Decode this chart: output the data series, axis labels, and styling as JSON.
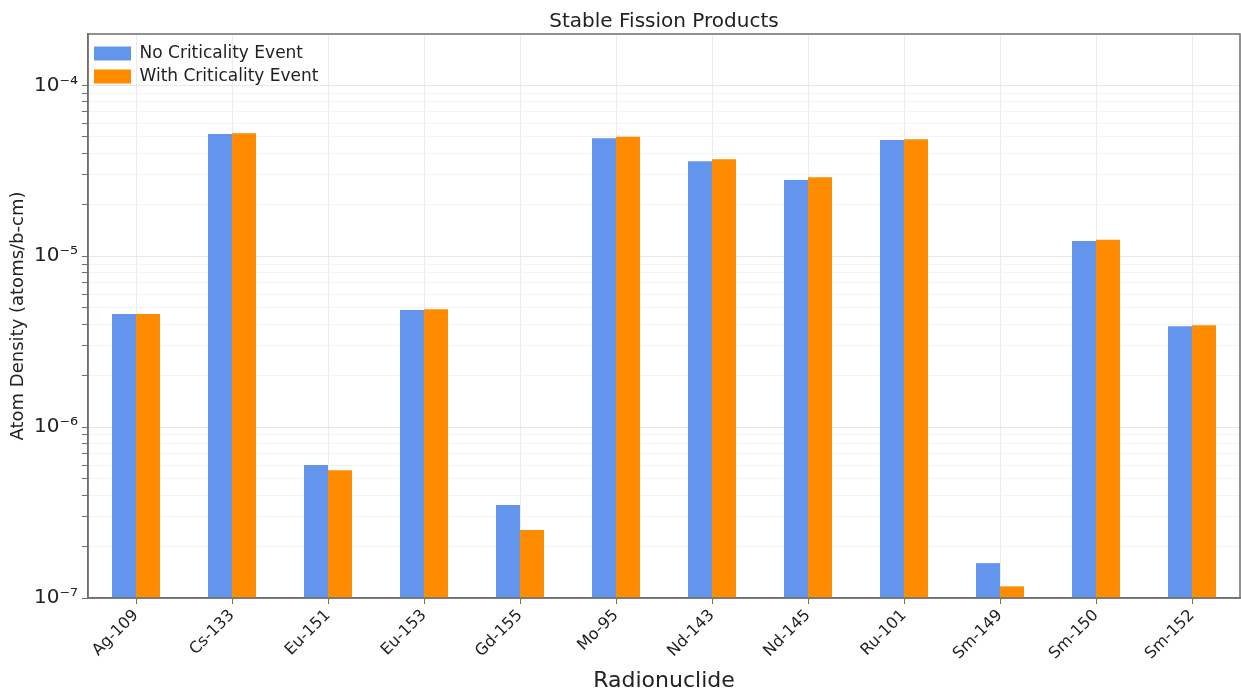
{
  "chart_data": {
    "type": "bar",
    "title": "Stable Fission Products",
    "xlabel": "Radionuclide",
    "ylabel": "Atom Density (atoms/b-cm)",
    "categories": [
      "Ag-109",
      "Cs-133",
      "Eu-151",
      "Eu-153",
      "Gd-155",
      "Mo-95",
      "Nd-143",
      "Nd-145",
      "Ru-101",
      "Sm-149",
      "Sm-150",
      "Sm-152"
    ],
    "series": [
      {
        "name": "No Criticality Event",
        "color": "#6495ed",
        "values": [
          4.6e-06,
          5.2e-05,
          6e-07,
          4.85e-06,
          3.5e-07,
          4.9e-05,
          3.6e-05,
          2.8e-05,
          4.8e-05,
          1.6e-07,
          1.23e-05,
          3.9e-06
        ]
      },
      {
        "name": "With Criticality Event",
        "color": "#ff8c00",
        "values": [
          4.6e-06,
          5.25e-05,
          5.6e-07,
          4.9e-06,
          2.5e-07,
          5e-05,
          3.7e-05,
          2.9e-05,
          4.85e-05,
          1.17e-07,
          1.25e-05,
          3.95e-06
        ]
      }
    ],
    "ylim": [
      1e-07,
      0.0002
    ],
    "yticks": [
      {
        "value": 1e-07,
        "label": "10⁻⁷"
      },
      {
        "value": 2e-07,
        "label": null
      },
      {
        "value": 3e-07,
        "label": null
      },
      {
        "value": 4e-07,
        "label": null
      },
      {
        "value": 5e-07,
        "label": null
      },
      {
        "value": 6e-07,
        "label": null
      },
      {
        "value": 7e-07,
        "label": null
      },
      {
        "value": 8e-07,
        "label": null
      },
      {
        "value": 9e-07,
        "label": null
      },
      {
        "value": 1e-06,
        "label": "10⁻⁶"
      },
      {
        "value": 2e-06,
        "label": null
      },
      {
        "value": 3e-06,
        "label": null
      },
      {
        "value": 4e-06,
        "label": null
      },
      {
        "value": 5e-06,
        "label": null
      },
      {
        "value": 6e-06,
        "label": null
      },
      {
        "value": 7e-06,
        "label": null
      },
      {
        "value": 8e-06,
        "label": null
      },
      {
        "value": 9e-06,
        "label": null
      },
      {
        "value": 1e-05,
        "label": "10⁻⁵"
      },
      {
        "value": 2e-05,
        "label": null
      },
      {
        "value": 3e-05,
        "label": null
      },
      {
        "value": 4e-05,
        "label": null
      },
      {
        "value": 5e-05,
        "label": null
      },
      {
        "value": 6e-05,
        "label": null
      },
      {
        "value": 7e-05,
        "label": null
      },
      {
        "value": 8e-05,
        "label": null
      },
      {
        "value": 9e-05,
        "label": null
      },
      {
        "value": 0.0001,
        "label": "10⁻⁴"
      }
    ],
    "log": true,
    "grid": true,
    "legend": "top left"
  }
}
